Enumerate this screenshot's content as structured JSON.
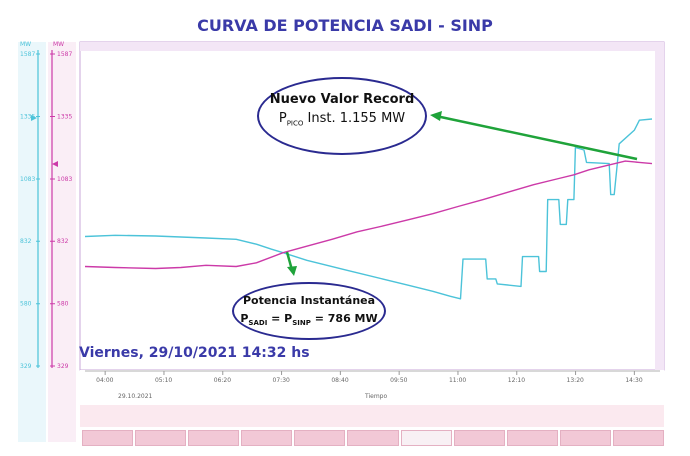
{
  "title": "CURVA DE POTENCIA SADI - SINP",
  "date_label": "Viernes, 29/10/2021 14:32 hs",
  "callout_record": {
    "line1": "Nuevo Valor Record",
    "p": "P",
    "sub": "PICO",
    "rest": " Inst. 1.155 MW"
  },
  "callout_inst": {
    "line1": "Potencia Instantánea",
    "p1": "P",
    "sub1": "SADI",
    "mid": " = P",
    "sub2": "SINP",
    "rest": " = 786 MW"
  },
  "colors": {
    "cyan": "#4cc3d9",
    "magenta": "#cc3aa8",
    "arrow": "#1fa33a",
    "plot_border": "#b07cc8"
  },
  "chart_data": {
    "type": "line",
    "title": "CURVA DE POTENCIA SADI - SINP",
    "xlabel": "Tiempo",
    "date_under_axis": "29.10.2021",
    "x_ticks": [
      "04:00",
      "05:10",
      "06:20",
      "07:30",
      "08:40",
      "09:50",
      "11:00",
      "12:10",
      "13:20",
      "14:30"
    ],
    "y_ticks": [
      "1587",
      "1335",
      "1083",
      "832",
      "580",
      "329"
    ],
    "y_unit": "MW",
    "y_range": [
      329,
      1587
    ],
    "x_range_hours": [
      3.6,
      14.85
    ],
    "series": [
      {
        "color": "cyan",
        "points": [
          [
            3.6,
            851
          ],
          [
            4.2,
            856
          ],
          [
            5.0,
            853
          ],
          [
            6.0,
            845
          ],
          [
            6.6,
            840
          ],
          [
            7.0,
            820
          ],
          [
            7.3,
            800
          ],
          [
            7.53,
            786
          ],
          [
            8.0,
            755
          ],
          [
            8.8,
            715
          ],
          [
            9.5,
            680
          ],
          [
            10.0,
            655
          ],
          [
            10.5,
            630
          ],
          [
            10.85,
            610
          ],
          [
            11.05,
            600
          ],
          [
            11.1,
            760
          ],
          [
            11.55,
            760
          ],
          [
            11.58,
            680
          ],
          [
            11.75,
            680
          ],
          [
            11.78,
            660
          ],
          [
            12.25,
            650
          ],
          [
            12.28,
            770
          ],
          [
            12.6,
            770
          ],
          [
            12.62,
            710
          ],
          [
            12.75,
            710
          ],
          [
            12.78,
            1000
          ],
          [
            13.0,
            1000
          ],
          [
            13.03,
            900
          ],
          [
            13.15,
            900
          ],
          [
            13.18,
            1000
          ],
          [
            13.3,
            1000
          ],
          [
            13.33,
            1210
          ],
          [
            13.5,
            1200
          ],
          [
            13.55,
            1150
          ],
          [
            14.0,
            1145
          ],
          [
            14.03,
            1020
          ],
          [
            14.1,
            1020
          ],
          [
            14.15,
            1120
          ],
          [
            14.2,
            1225
          ],
          [
            14.5,
            1280
          ],
          [
            14.6,
            1320
          ],
          [
            14.85,
            1325
          ]
        ]
      },
      {
        "color": "magenta",
        "points": [
          [
            3.6,
            730
          ],
          [
            4.2,
            726
          ],
          [
            5.0,
            722
          ],
          [
            5.5,
            726
          ],
          [
            6.0,
            735
          ],
          [
            6.6,
            730
          ],
          [
            7.0,
            745
          ],
          [
            7.53,
            786
          ],
          [
            8.0,
            812
          ],
          [
            8.5,
            840
          ],
          [
            9.0,
            870
          ],
          [
            9.5,
            893
          ],
          [
            10.0,
            918
          ],
          [
            10.5,
            943
          ],
          [
            11.0,
            972
          ],
          [
            11.5,
            1000
          ],
          [
            12.0,
            1030
          ],
          [
            12.5,
            1060
          ],
          [
            13.0,
            1085
          ],
          [
            13.3,
            1100
          ],
          [
            13.6,
            1120
          ],
          [
            14.0,
            1140
          ],
          [
            14.32,
            1155
          ],
          [
            14.6,
            1150
          ],
          [
            14.85,
            1145
          ]
        ]
      }
    ]
  },
  "toolbar": {
    "buttons": 11,
    "active_index": 6
  }
}
